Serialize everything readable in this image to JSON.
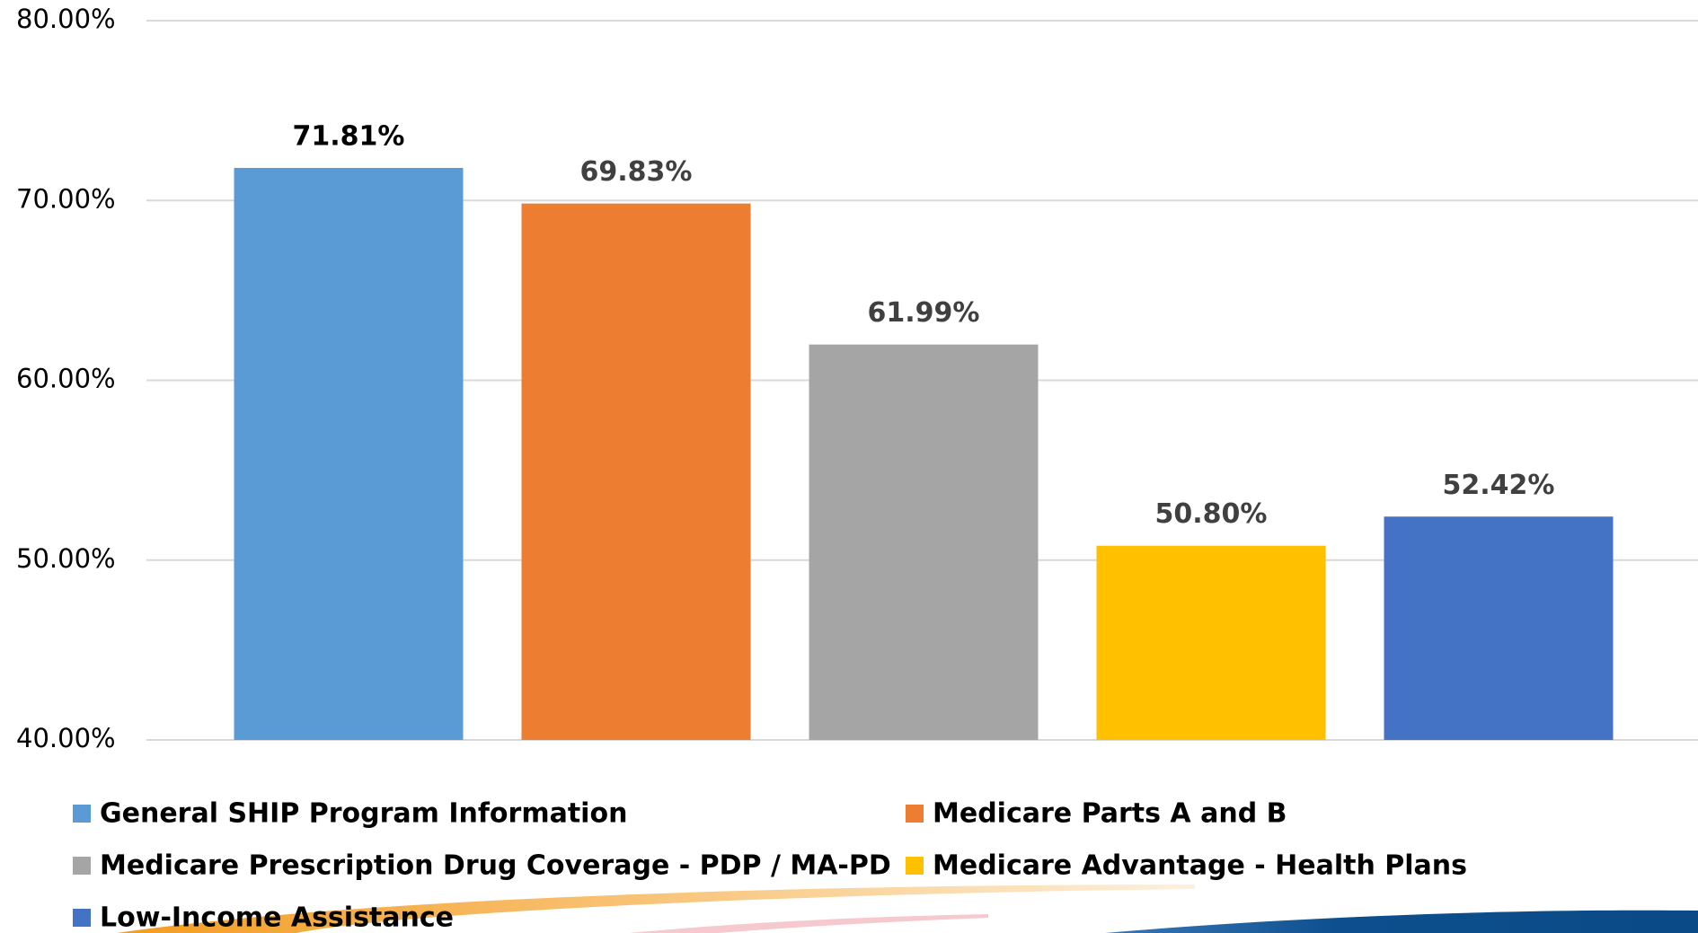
{
  "chart_data": {
    "type": "bar",
    "categories": [
      null
    ],
    "series": [
      {
        "name": "General SHIP Program Information",
        "color": "#5b9bd5",
        "label_color": "#000000",
        "values": [
          71.81
        ],
        "value_labels": [
          "71.81%"
        ]
      },
      {
        "name": "Medicare Parts A and B",
        "color": "#ed7d31",
        "label_color": "#404040",
        "values": [
          69.83
        ],
        "value_labels": [
          "69.83%"
        ]
      },
      {
        "name": "Medicare Prescription Drug Coverage - PDP / MA-PD",
        "color": "#a5a5a5",
        "label_color": "#404040",
        "values": [
          61.99
        ],
        "value_labels": [
          "61.99%"
        ]
      },
      {
        "name": "Medicare Advantage - Health Plans",
        "color": "#ffc000",
        "label_color": "#404040",
        "values": [
          50.8
        ],
        "value_labels": [
          "50.80%"
        ]
      },
      {
        "name": "Low-Income Assistance",
        "color": "#4472c4",
        "label_color": "#404040",
        "values": [
          52.42
        ],
        "value_labels": [
          "52.42%"
        ]
      }
    ],
    "ylim": [
      40,
      80
    ],
    "yticks": [
      {
        "value": 40,
        "label": "40.00%"
      },
      {
        "value": 50,
        "label": "50.00%"
      },
      {
        "value": 60,
        "label": "60.00%"
      },
      {
        "value": 70,
        "label": "70.00%"
      },
      {
        "value": 80,
        "label": "80.00%"
      }
    ],
    "grid": true,
    "legend": "bottom"
  }
}
